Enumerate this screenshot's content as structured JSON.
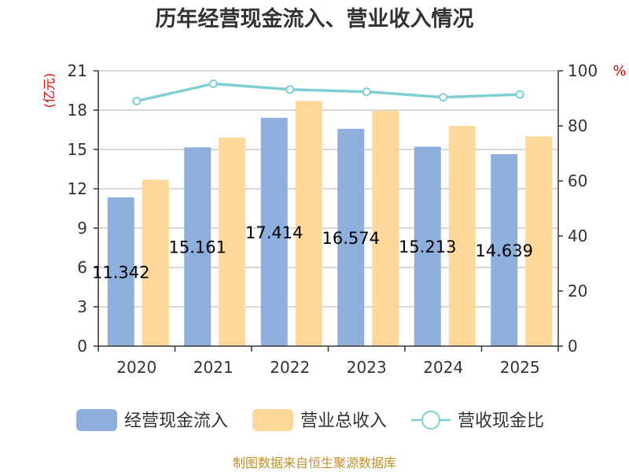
{
  "chart_data": {
    "type": "bar",
    "title": "历年经营现金流入、营业收入情况",
    "categories": [
      "2020",
      "2021",
      "2022",
      "2023",
      "2024",
      "2025"
    ],
    "series": [
      {
        "name": "经营现金流入",
        "axis": "left",
        "type": "bar",
        "color": "#8eaedb",
        "values": [
          11.342,
          15.161,
          17.414,
          16.574,
          15.213,
          14.639
        ]
      },
      {
        "name": "营业总收入",
        "axis": "left",
        "type": "bar",
        "color": "#ffd899",
        "values": [
          12.7,
          15.9,
          18.7,
          17.95,
          16.8,
          16.0
        ]
      },
      {
        "name": "营收现金比",
        "axis": "right",
        "type": "line",
        "color": "#7ed0d2",
        "values": [
          89.0,
          95.3,
          93.2,
          92.4,
          90.4,
          91.4
        ]
      }
    ],
    "data_labels": [
      "11.342",
      "15.161",
      "17.414",
      "16.574",
      "15.213",
      "14.639"
    ],
    "y_left": {
      "unit": "(亿元)",
      "ylim": [
        0,
        21
      ],
      "ticks": [
        "0",
        "3",
        "6",
        "9",
        "12",
        "15",
        "18",
        "21"
      ]
    },
    "y_right": {
      "unit": "%",
      "ylim": [
        0,
        100
      ],
      "ticks": [
        "0",
        "20",
        "40",
        "60",
        "80",
        "100"
      ]
    },
    "grid": true,
    "legend_position": "bottom"
  },
  "source_note": "制图数据来自恒生聚源数据库"
}
